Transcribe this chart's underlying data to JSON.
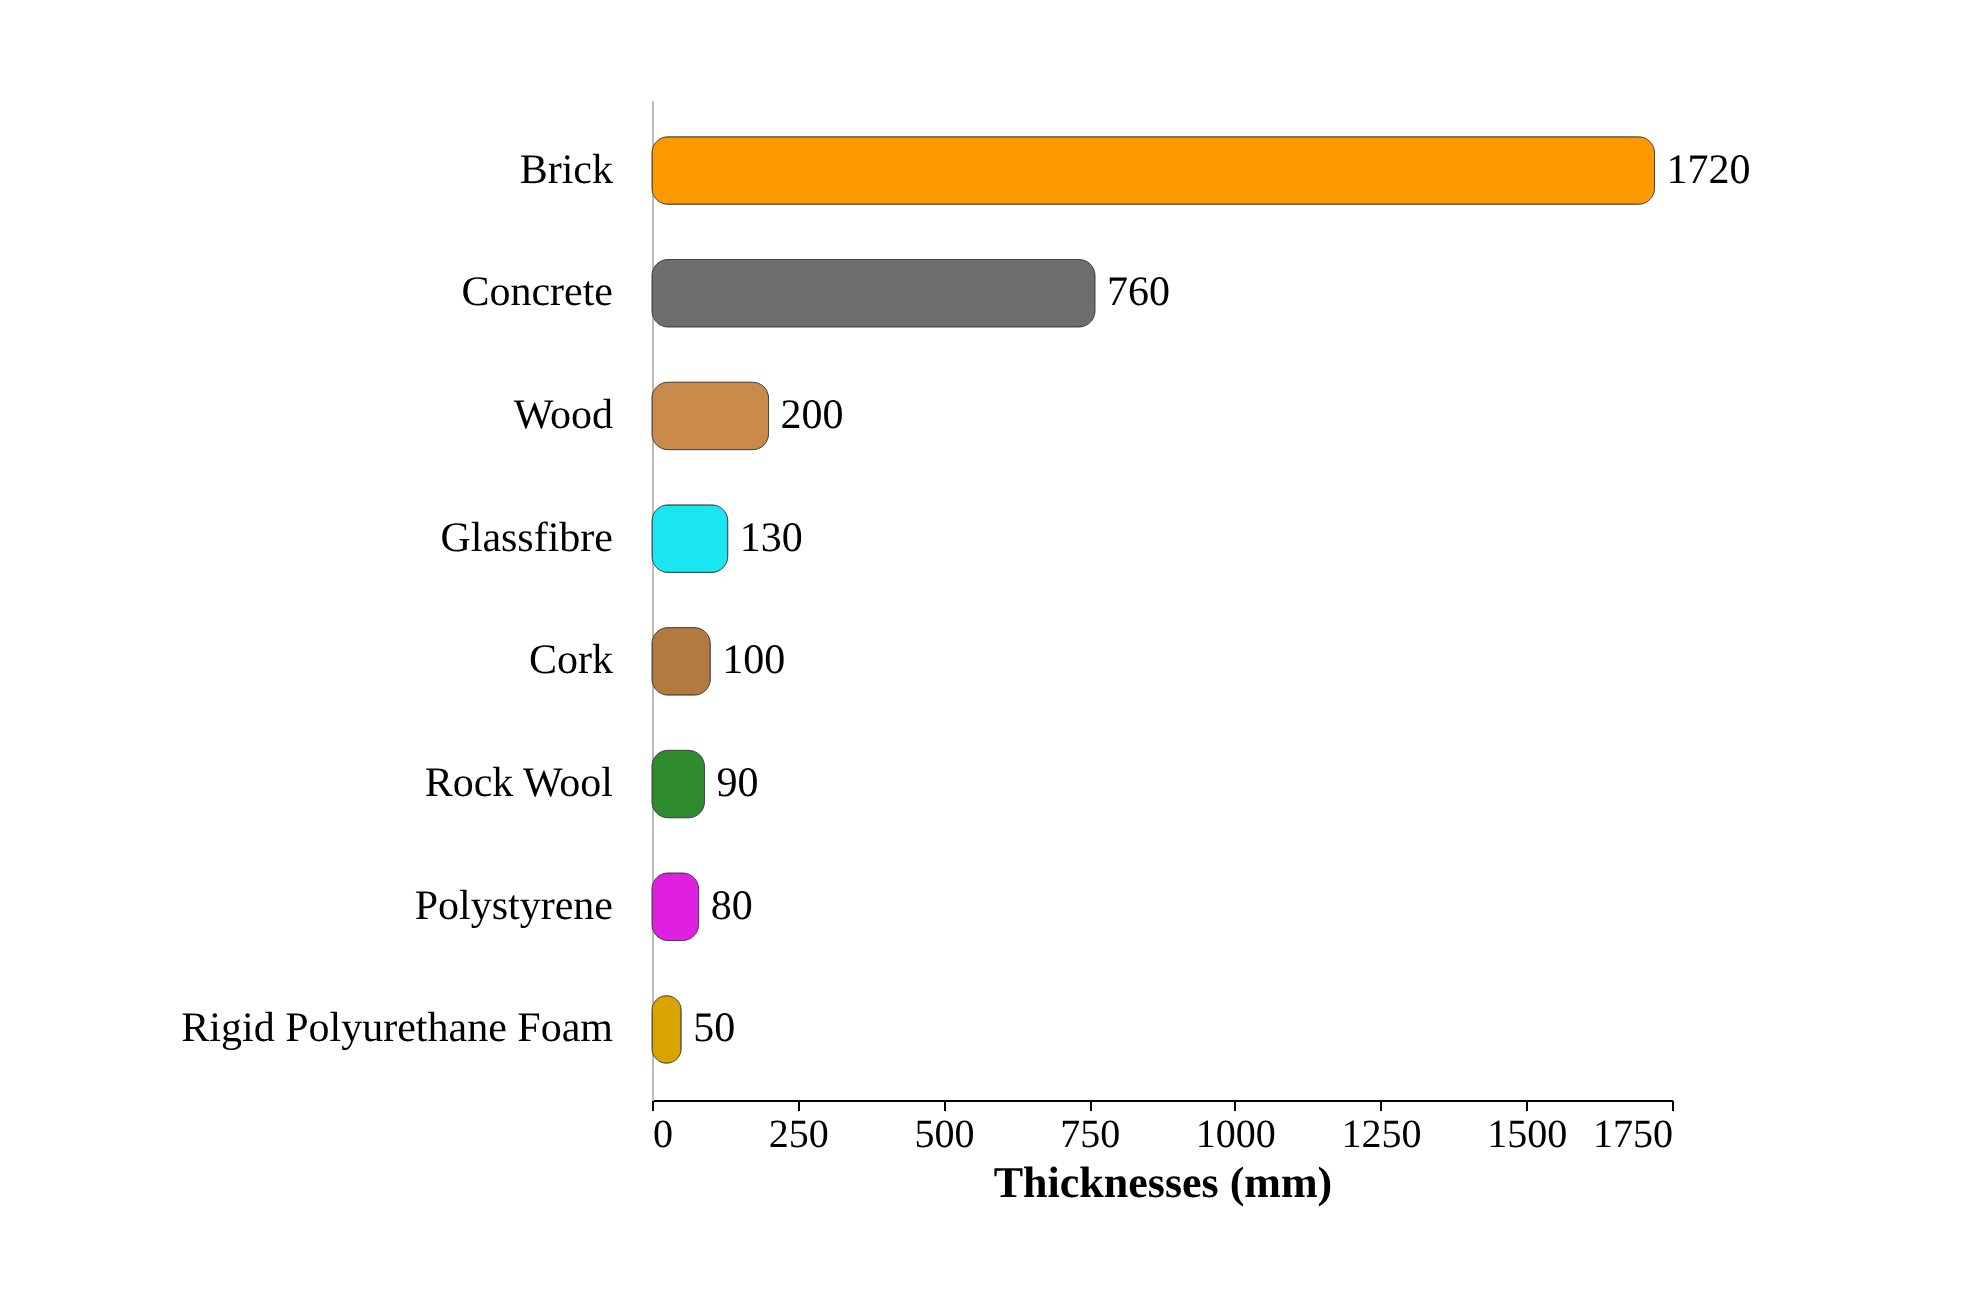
{
  "chart_data": {
    "type": "bar",
    "orientation": "horizontal",
    "xlabel": "Thicknesses (mm)",
    "categories": [
      "Brick",
      "Concrete",
      "Wood",
      "Glassfibre",
      "Cork",
      "Rock Wool",
      "Polystyrene",
      "Rigid Polyurethane Foam"
    ],
    "values": [
      1720,
      760,
      200,
      130,
      100,
      90,
      80,
      50
    ],
    "colors": [
      "#ff9900",
      "#6e6e6e",
      "#c98a4b",
      "#19e6f0",
      "#b37a40",
      "#2e8b2e",
      "#e020e0",
      "#d9a400"
    ],
    "xlim": [
      0,
      1750
    ],
    "xticks": [
      0,
      250,
      500,
      750,
      1000,
      1250,
      1500,
      1750
    ],
    "data_labels": true,
    "grid": false
  }
}
